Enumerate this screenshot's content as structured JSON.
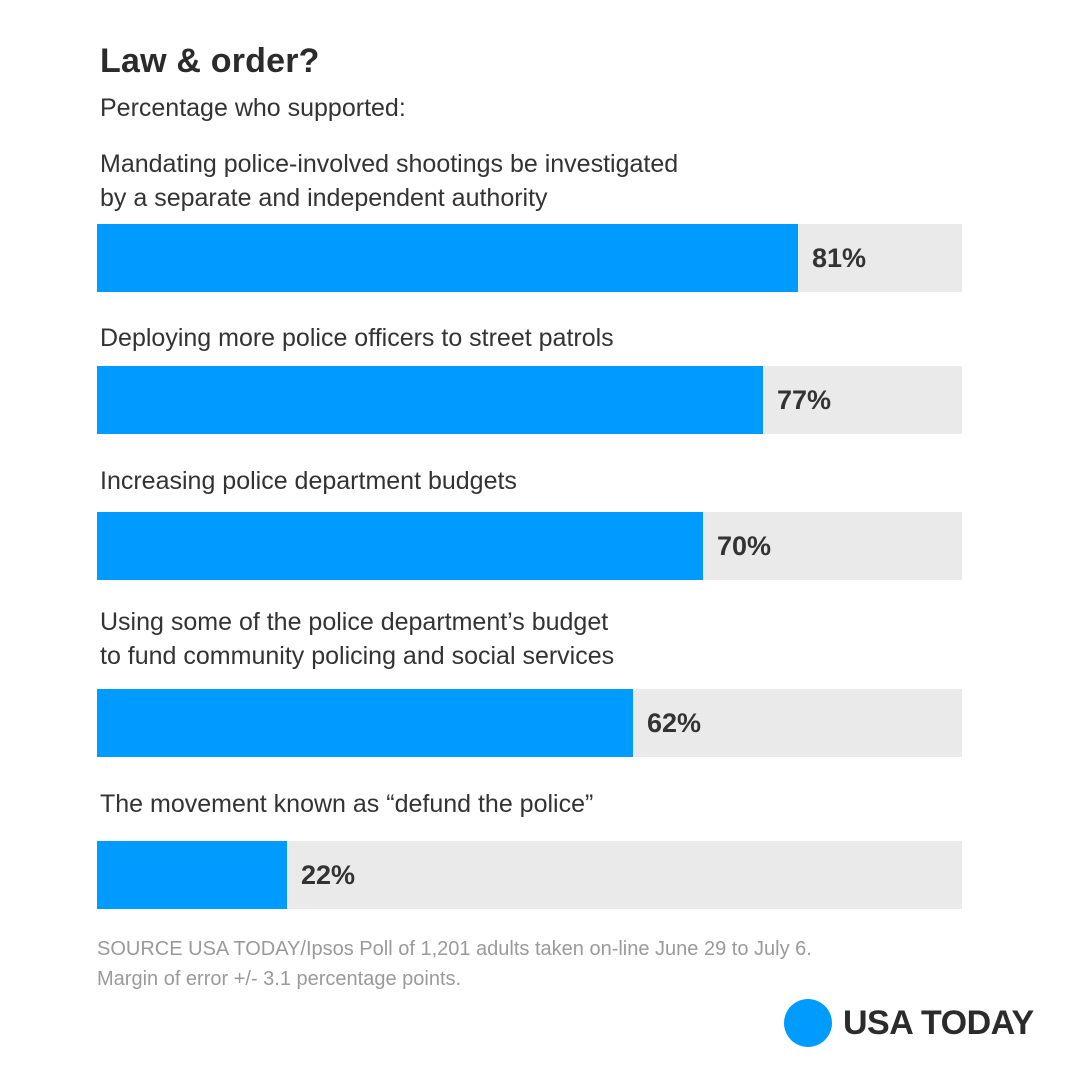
{
  "colors": {
    "bar": "#009bff",
    "track": "#eaeaea",
    "text": "#333333",
    "source_text": "#9a9a9a",
    "logo_dot": "#009bff"
  },
  "chart_data": {
    "type": "bar",
    "orientation": "horizontal",
    "title": "Law & order?",
    "subtitle": "Percentage who supported:",
    "xlim": [
      0,
      100
    ],
    "unit": "%",
    "categories": [
      "Mandating police-involved shootings be investigated\nby a separate and independent authority",
      "Deploying more police officers to street patrols",
      "Increasing police department budgets",
      "Using some of the police department’s budget\nto fund community policing and social services",
      "The movement known as “defund the police”"
    ],
    "values": [
      81,
      77,
      70,
      62,
      22
    ],
    "value_labels": [
      "81%",
      "77%",
      "70%",
      "62%",
      "22%"
    ]
  },
  "source": {
    "line1": "SOURCE USA TODAY/Ipsos Poll of 1,201 adults taken on-line June 29 to July 6.",
    "line2": "Margin of error +/- 3.1 percentage points."
  },
  "logo": {
    "icon": "circle-logo-icon",
    "text": "USA TODAY"
  }
}
